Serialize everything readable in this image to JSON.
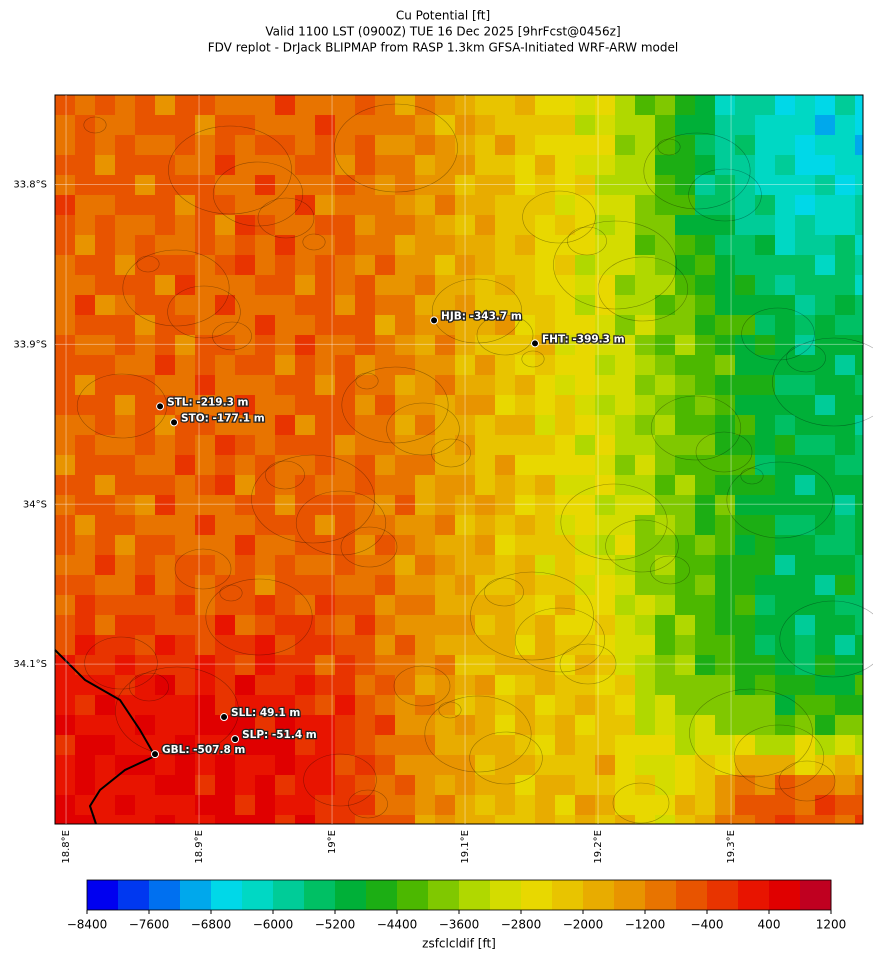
{
  "chart_data": {
    "type": "map",
    "title": "Cu Potential [ft]",
    "subtitle": [
      "Valid 1100 LST (0900Z) TUE 16 Dec 2025 [9hrFcst@0456z]",
      "FDV replot - DrJack BLIPMAP from RASP 1.3km GFSA-Initiated WRF-ARW model"
    ],
    "xlim": [
      18.7917,
      19.3992
    ],
    "ylim": [
      -34.2,
      -33.744
    ],
    "xticks": [
      {
        "value": 18.8,
        "label": "18.8°E"
      },
      {
        "value": 18.9,
        "label": "18.9°E"
      },
      {
        "value": 19.0,
        "label": "19°E"
      },
      {
        "value": 19.1,
        "label": "19.1°E"
      },
      {
        "value": 19.2,
        "label": "19.2°E"
      },
      {
        "value": 19.3,
        "label": "19.3°E"
      }
    ],
    "yticks": [
      {
        "value": -33.8,
        "label": "33.8°S"
      },
      {
        "value": -33.9,
        "label": "33.9°S"
      },
      {
        "value": -34.0,
        "label": "34°S"
      },
      {
        "value": -34.1,
        "label": "34.1°S"
      }
    ],
    "grid": true,
    "stations": [
      {
        "label": "HJB: -343.7 m",
        "lon": 19.0767,
        "lat": -33.885
      },
      {
        "label": "FHT: -399.3 m",
        "lon": 19.1526,
        "lat": -33.8994
      },
      {
        "label": "STL: -219.3 m",
        "lon": 18.8707,
        "lat": -33.9388
      },
      {
        "label": "STO: -177.1 m",
        "lon": 18.8812,
        "lat": -33.9488
      },
      {
        "label": "SLL: 49.1 m",
        "lon": 18.9188,
        "lat": -34.1331
      },
      {
        "label": "SLP: -51.4 m",
        "lon": 18.9271,
        "lat": -34.1469
      },
      {
        "label": "GBL: -507.8 m",
        "lon": 18.8669,
        "lat": -34.1563
      }
    ],
    "colorbar": {
      "label": "zsfclcldif [ft]",
      "lim": [
        -8400,
        1200
      ],
      "ticks": [
        {
          "value": -8400,
          "label": "−8400"
        },
        {
          "value": -7600,
          "label": "−7600"
        },
        {
          "value": -6800,
          "label": "−6800"
        },
        {
          "value": -6000,
          "label": "−6000"
        },
        {
          "value": -5200,
          "label": "−5200"
        },
        {
          "value": -4400,
          "label": "−4400"
        },
        {
          "value": -3600,
          "label": "−3600"
        },
        {
          "value": -2800,
          "label": "−2800"
        },
        {
          "value": -2000,
          "label": "−2000"
        },
        {
          "value": -1200,
          "label": "−1200"
        },
        {
          "value": -400,
          "label": "−400"
        },
        400,
        1200
      ],
      "colors": [
        "#0000f0",
        "#0038f0",
        "#0070f0",
        "#00a8ec",
        "#00d8e8",
        "#00d8c4",
        "#00cc98",
        "#00c064",
        "#00b038",
        "#1cae14",
        "#4cb800",
        "#80c800",
        "#b0d800",
        "#d4dc00",
        "#e8d800",
        "#e8c400",
        "#e8ac00",
        "#e89400",
        "#e87400",
        "#e85400",
        "#e83400",
        "#e81400",
        "#e00000",
        "#c00020"
      ]
    }
  }
}
